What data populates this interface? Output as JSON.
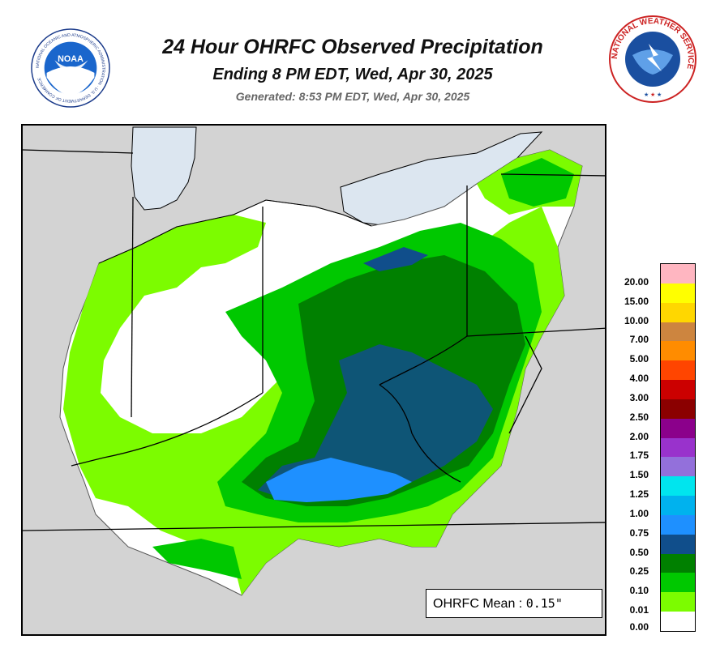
{
  "header": {
    "title": "24 Hour OHRFC Observed Precipitation",
    "subtitle": "Ending 8 PM EDT, Wed, Apr 30, 2025",
    "generated": "Generated: 8:53 PM EDT, Wed, Apr 30, 2025"
  },
  "logos": {
    "left": {
      "icon": "noaa-logo",
      "text": "NOAA",
      "ring_text": "NATIONAL OCEANIC AND ATMOSPHERIC ADMINISTRATION · U.S. DEPARTMENT OF COMMERCE"
    },
    "right": {
      "icon": "nws-logo",
      "ring_text": "NATIONAL WEATHER SERVICE"
    }
  },
  "mean": {
    "label": "OHRFC Mean :",
    "value": "0.15\""
  },
  "legend": {
    "entries": [
      {
        "label": "20.00",
        "color": "#ffb6c1"
      },
      {
        "label": "15.00",
        "color": "#ffff00"
      },
      {
        "label": "10.00",
        "color": "#ffd700"
      },
      {
        "label": "7.00",
        "color": "#cd853f"
      },
      {
        "label": "5.00",
        "color": "#ff8c00"
      },
      {
        "label": "4.00",
        "color": "#ff4500"
      },
      {
        "label": "3.00",
        "color": "#cc0000"
      },
      {
        "label": "2.50",
        "color": "#8b0000"
      },
      {
        "label": "2.00",
        "color": "#8b008b"
      },
      {
        "label": "1.75",
        "color": "#9932cc"
      },
      {
        "label": "1.50",
        "color": "#9370db"
      },
      {
        "label": "1.25",
        "color": "#00e5ee"
      },
      {
        "label": "1.00",
        "color": "#00b2ee"
      },
      {
        "label": "0.75",
        "color": "#1e90ff"
      },
      {
        "label": "0.50",
        "color": "#104e8b"
      },
      {
        "label": "0.25",
        "color": "#008000"
      },
      {
        "label": "0.10",
        "color": "#00c800"
      },
      {
        "label": "0.01",
        "color": "#7cfc00"
      },
      {
        "label": "0.00",
        "color": "#ffffff"
      }
    ]
  },
  "colors": {
    "background": "#d3d3d3",
    "water": "#dce6f0",
    "basin": "#ffffff",
    "light_green": "#7cfc00",
    "green": "#00c800",
    "dark_green": "#008000",
    "navy": "#104e8b",
    "blue": "#1e90ff"
  }
}
